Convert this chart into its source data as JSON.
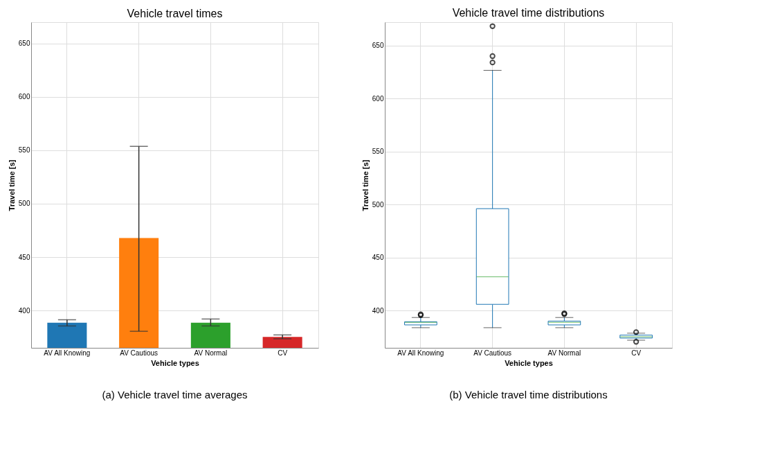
{
  "chart_data": [
    {
      "type": "bar",
      "title": "Vehicle travel times",
      "xlabel": "Vehicle types",
      "ylabel": "Travel time [s]",
      "categories": [
        "AV All Knowing",
        "AV Cautious",
        "AV Normal",
        "CV"
      ],
      "values": [
        388.6,
        467.8,
        388.6,
        375.2
      ],
      "colors": [
        "#1f77b4",
        "#ff7f0e",
        "#2ca02c",
        "#d62728"
      ],
      "errors": [
        [
          385.5,
          391.3
        ],
        [
          380.5,
          553.7
        ],
        [
          385.5,
          392.0
        ],
        [
          373.5,
          377.1
        ]
      ],
      "ylim": [
        365,
        670
      ],
      "yticks": [
        400,
        450,
        500,
        550,
        600,
        650
      ],
      "grid": true,
      "annotations": [
        "(a) Vehicle travel time averages"
      ]
    },
    {
      "type": "box",
      "title": "Vehicle travel time distributions",
      "xlabel": "Vehicle types",
      "ylabel": "Travel time [s]",
      "categories": [
        "AV All Knowing",
        "AV Cautious",
        "AV Normal",
        "CV"
      ],
      "boxes": [
        {
          "low": 384,
          "q1": 386.6,
          "median": 389,
          "q3": 389.6,
          "high": 393.6,
          "outliers": [
            395.8,
            396.5
          ]
        },
        {
          "low": 384,
          "q1": 406,
          "median": 431.9,
          "q3": 496.2,
          "high": 626.6,
          "outliers": [
            634,
            640,
            668.2
          ]
        },
        {
          "low": 384,
          "q1": 386.6,
          "median": 389,
          "q3": 390.2,
          "high": 393.6,
          "outliers": [
            396.8,
            397.5
          ]
        },
        {
          "low": 372.2,
          "q1": 374.2,
          "median": 375.5,
          "q3": 377,
          "high": 378.8,
          "outliers": [
            379.8,
            370.7
          ]
        }
      ],
      "ylim": [
        365,
        672
      ],
      "yticks": [
        400,
        450,
        500,
        550,
        600,
        650
      ],
      "grid": true,
      "annotations": [
        "(b) Vehicle travel time distributions"
      ]
    }
  ]
}
